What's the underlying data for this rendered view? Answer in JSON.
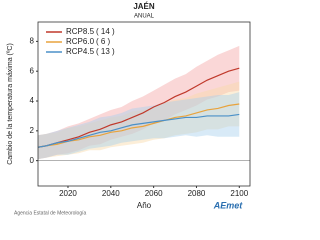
{
  "chart_data": {
    "type": "line",
    "title": "JAÉN",
    "subtitle": "ANUAL",
    "ylabel": "Cambio de la temperatura máxima (ºC)",
    "xlabel": "Año",
    "footer": "Agencia Estatal de Meteorología",
    "logo": "AEmet",
    "x": [
      2006,
      2010,
      2015,
      2020,
      2025,
      2030,
      2035,
      2040,
      2045,
      2050,
      2055,
      2060,
      2065,
      2070,
      2075,
      2080,
      2085,
      2090,
      2095,
      2100
    ],
    "xlim": [
      2006,
      2105
    ],
    "xticks": [
      2020,
      2040,
      2060,
      2080,
      2100
    ],
    "ylim": [
      -1.7,
      9.3
    ],
    "yticks": [
      0,
      2,
      4,
      6,
      8
    ],
    "grid": false,
    "series": [
      {
        "name": "RCP8.5",
        "models": "( 14 )",
        "color": "#c0392b",
        "band_color": "#f4a6a6",
        "values": [
          0.9,
          1.0,
          1.2,
          1.4,
          1.6,
          1.9,
          2.1,
          2.4,
          2.6,
          2.9,
          3.2,
          3.6,
          3.9,
          4.3,
          4.6,
          5.0,
          5.4,
          5.7,
          6.0,
          6.2
        ],
        "lower": [
          0.1,
          0.2,
          0.4,
          0.5,
          0.7,
          1.0,
          1.1,
          1.4,
          1.6,
          1.8,
          2.1,
          2.5,
          2.7,
          3.1,
          3.4,
          3.7,
          4.1,
          4.3,
          4.6,
          4.7
        ],
        "upper": [
          1.7,
          1.8,
          2.0,
          2.3,
          2.5,
          2.8,
          3.1,
          3.4,
          3.6,
          4.0,
          4.3,
          4.7,
          5.1,
          5.5,
          5.8,
          6.3,
          6.7,
          7.1,
          7.4,
          7.7
        ]
      },
      {
        "name": "RCP6.0",
        "models": "( 6 )",
        "color": "#e8a33d",
        "band_color": "#f8d9a8",
        "values": [
          0.9,
          1.0,
          1.1,
          1.3,
          1.4,
          1.6,
          1.7,
          1.9,
          2.0,
          2.2,
          2.3,
          2.5,
          2.7,
          2.9,
          3.0,
          3.2,
          3.4,
          3.5,
          3.7,
          3.8
        ],
        "lower": [
          0.1,
          0.2,
          0.3,
          0.4,
          0.5,
          0.7,
          0.7,
          0.9,
          1.0,
          1.1,
          1.2,
          1.4,
          1.5,
          1.7,
          1.8,
          1.9,
          2.1,
          2.1,
          2.3,
          2.3
        ],
        "upper": [
          1.7,
          1.8,
          1.9,
          2.2,
          2.3,
          2.5,
          2.7,
          2.9,
          3.0,
          3.3,
          3.4,
          3.6,
          3.9,
          4.1,
          4.2,
          4.5,
          4.7,
          4.9,
          5.1,
          5.3
        ]
      },
      {
        "name": "RCP4.5",
        "models": "( 13 )",
        "color": "#4a90c8",
        "band_color": "#a9d0ee",
        "values": [
          0.9,
          1.0,
          1.2,
          1.3,
          1.5,
          1.7,
          1.9,
          2.0,
          2.2,
          2.4,
          2.5,
          2.6,
          2.7,
          2.8,
          2.9,
          2.9,
          3.0,
          3.0,
          3.0,
          3.1
        ],
        "lower": [
          0.1,
          0.2,
          0.4,
          0.4,
          0.6,
          0.8,
          0.9,
          1.0,
          1.2,
          1.3,
          1.4,
          1.5,
          1.5,
          1.6,
          1.7,
          1.6,
          1.7,
          1.6,
          1.6,
          1.6
        ],
        "upper": [
          1.7,
          1.8,
          2.0,
          2.2,
          2.4,
          2.6,
          2.9,
          3.0,
          3.2,
          3.5,
          3.6,
          3.7,
          3.9,
          4.0,
          4.1,
          4.2,
          4.3,
          4.4,
          4.4,
          4.6
        ]
      }
    ]
  }
}
